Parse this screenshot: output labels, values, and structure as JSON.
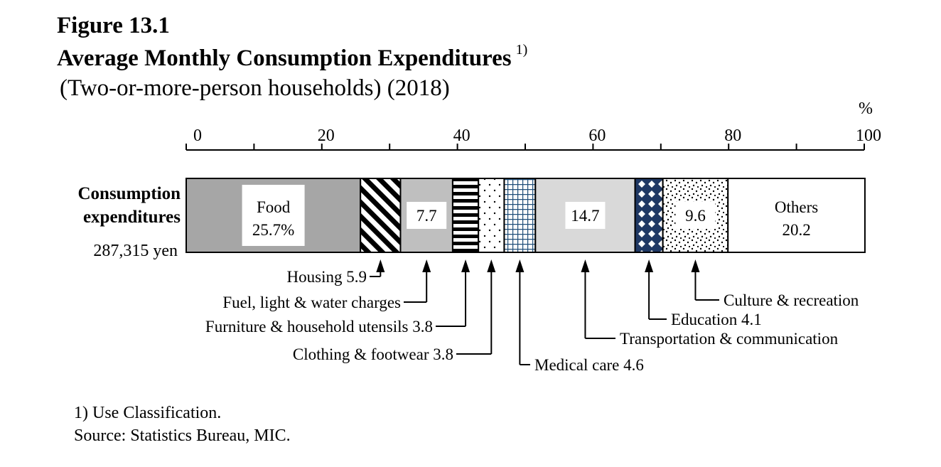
{
  "figure": {
    "label": "Figure 13.1",
    "title": "Average Monthly Consumption Expenditures",
    "title_note": "1)",
    "subtitle": "(Two-or-more-person households) (2018)"
  },
  "chart_data": {
    "type": "bar",
    "orientation": "horizontal",
    "stacked": true,
    "percent_unit": "%",
    "xlim": [
      0,
      100
    ],
    "tick_labels": [
      "0",
      "20",
      "40",
      "60",
      "80",
      "100"
    ],
    "row_label_lines": [
      "Consumption",
      "expenditures"
    ],
    "row_total": "287,315 yen",
    "segments": [
      {
        "name": "Food",
        "value": 25.7,
        "inside_lines": [
          "Food",
          "25.7%"
        ],
        "fill": "solid-gray"
      },
      {
        "name": "Housing",
        "value": 5.9,
        "callout": "Housing 5.9",
        "fill": "diagonal-stripes"
      },
      {
        "name": "Fuel, light & water charges",
        "value": 7.7,
        "inside_lines": [
          "7.7"
        ],
        "callout": "Fuel, light & water charges",
        "fill": "light-gray"
      },
      {
        "name": "Furniture & household utensils",
        "value": 3.8,
        "callout": "Furniture & household utensils 3.8",
        "fill": "horizontal-stripes"
      },
      {
        "name": "Clothing & footwear",
        "value": 3.8,
        "callout": "Clothing & footwear 3.8",
        "fill": "sparse-dots"
      },
      {
        "name": "Medical care",
        "value": 4.6,
        "callout": "Medical care 4.6",
        "fill": "blue-grid"
      },
      {
        "name": "Transportation & communication",
        "value": 14.7,
        "inside_lines": [
          "14.7"
        ],
        "callout": "Transportation & communication",
        "fill": "pale-gray"
      },
      {
        "name": "Education",
        "value": 4.1,
        "callout": "Education 4.1",
        "fill": "navy-diamonds"
      },
      {
        "name": "Culture & recreation",
        "value": 9.6,
        "inside_lines": [
          "9.6"
        ],
        "callout": "Culture & recreation",
        "fill": "dense-dots"
      },
      {
        "name": "Others",
        "value": 20.2,
        "inside_lines": [
          "Others",
          "20.2"
        ],
        "fill": "white"
      }
    ],
    "colors": {
      "food": "#a6a6a6",
      "fuel": "#bfbfbf",
      "transport": "#d9d9d9",
      "medical": "#1f4e79",
      "education": "#1f3864"
    }
  },
  "notes": {
    "footnote": "1) Use Classification.",
    "source": "Source:  Statistics Bureau, MIC."
  }
}
